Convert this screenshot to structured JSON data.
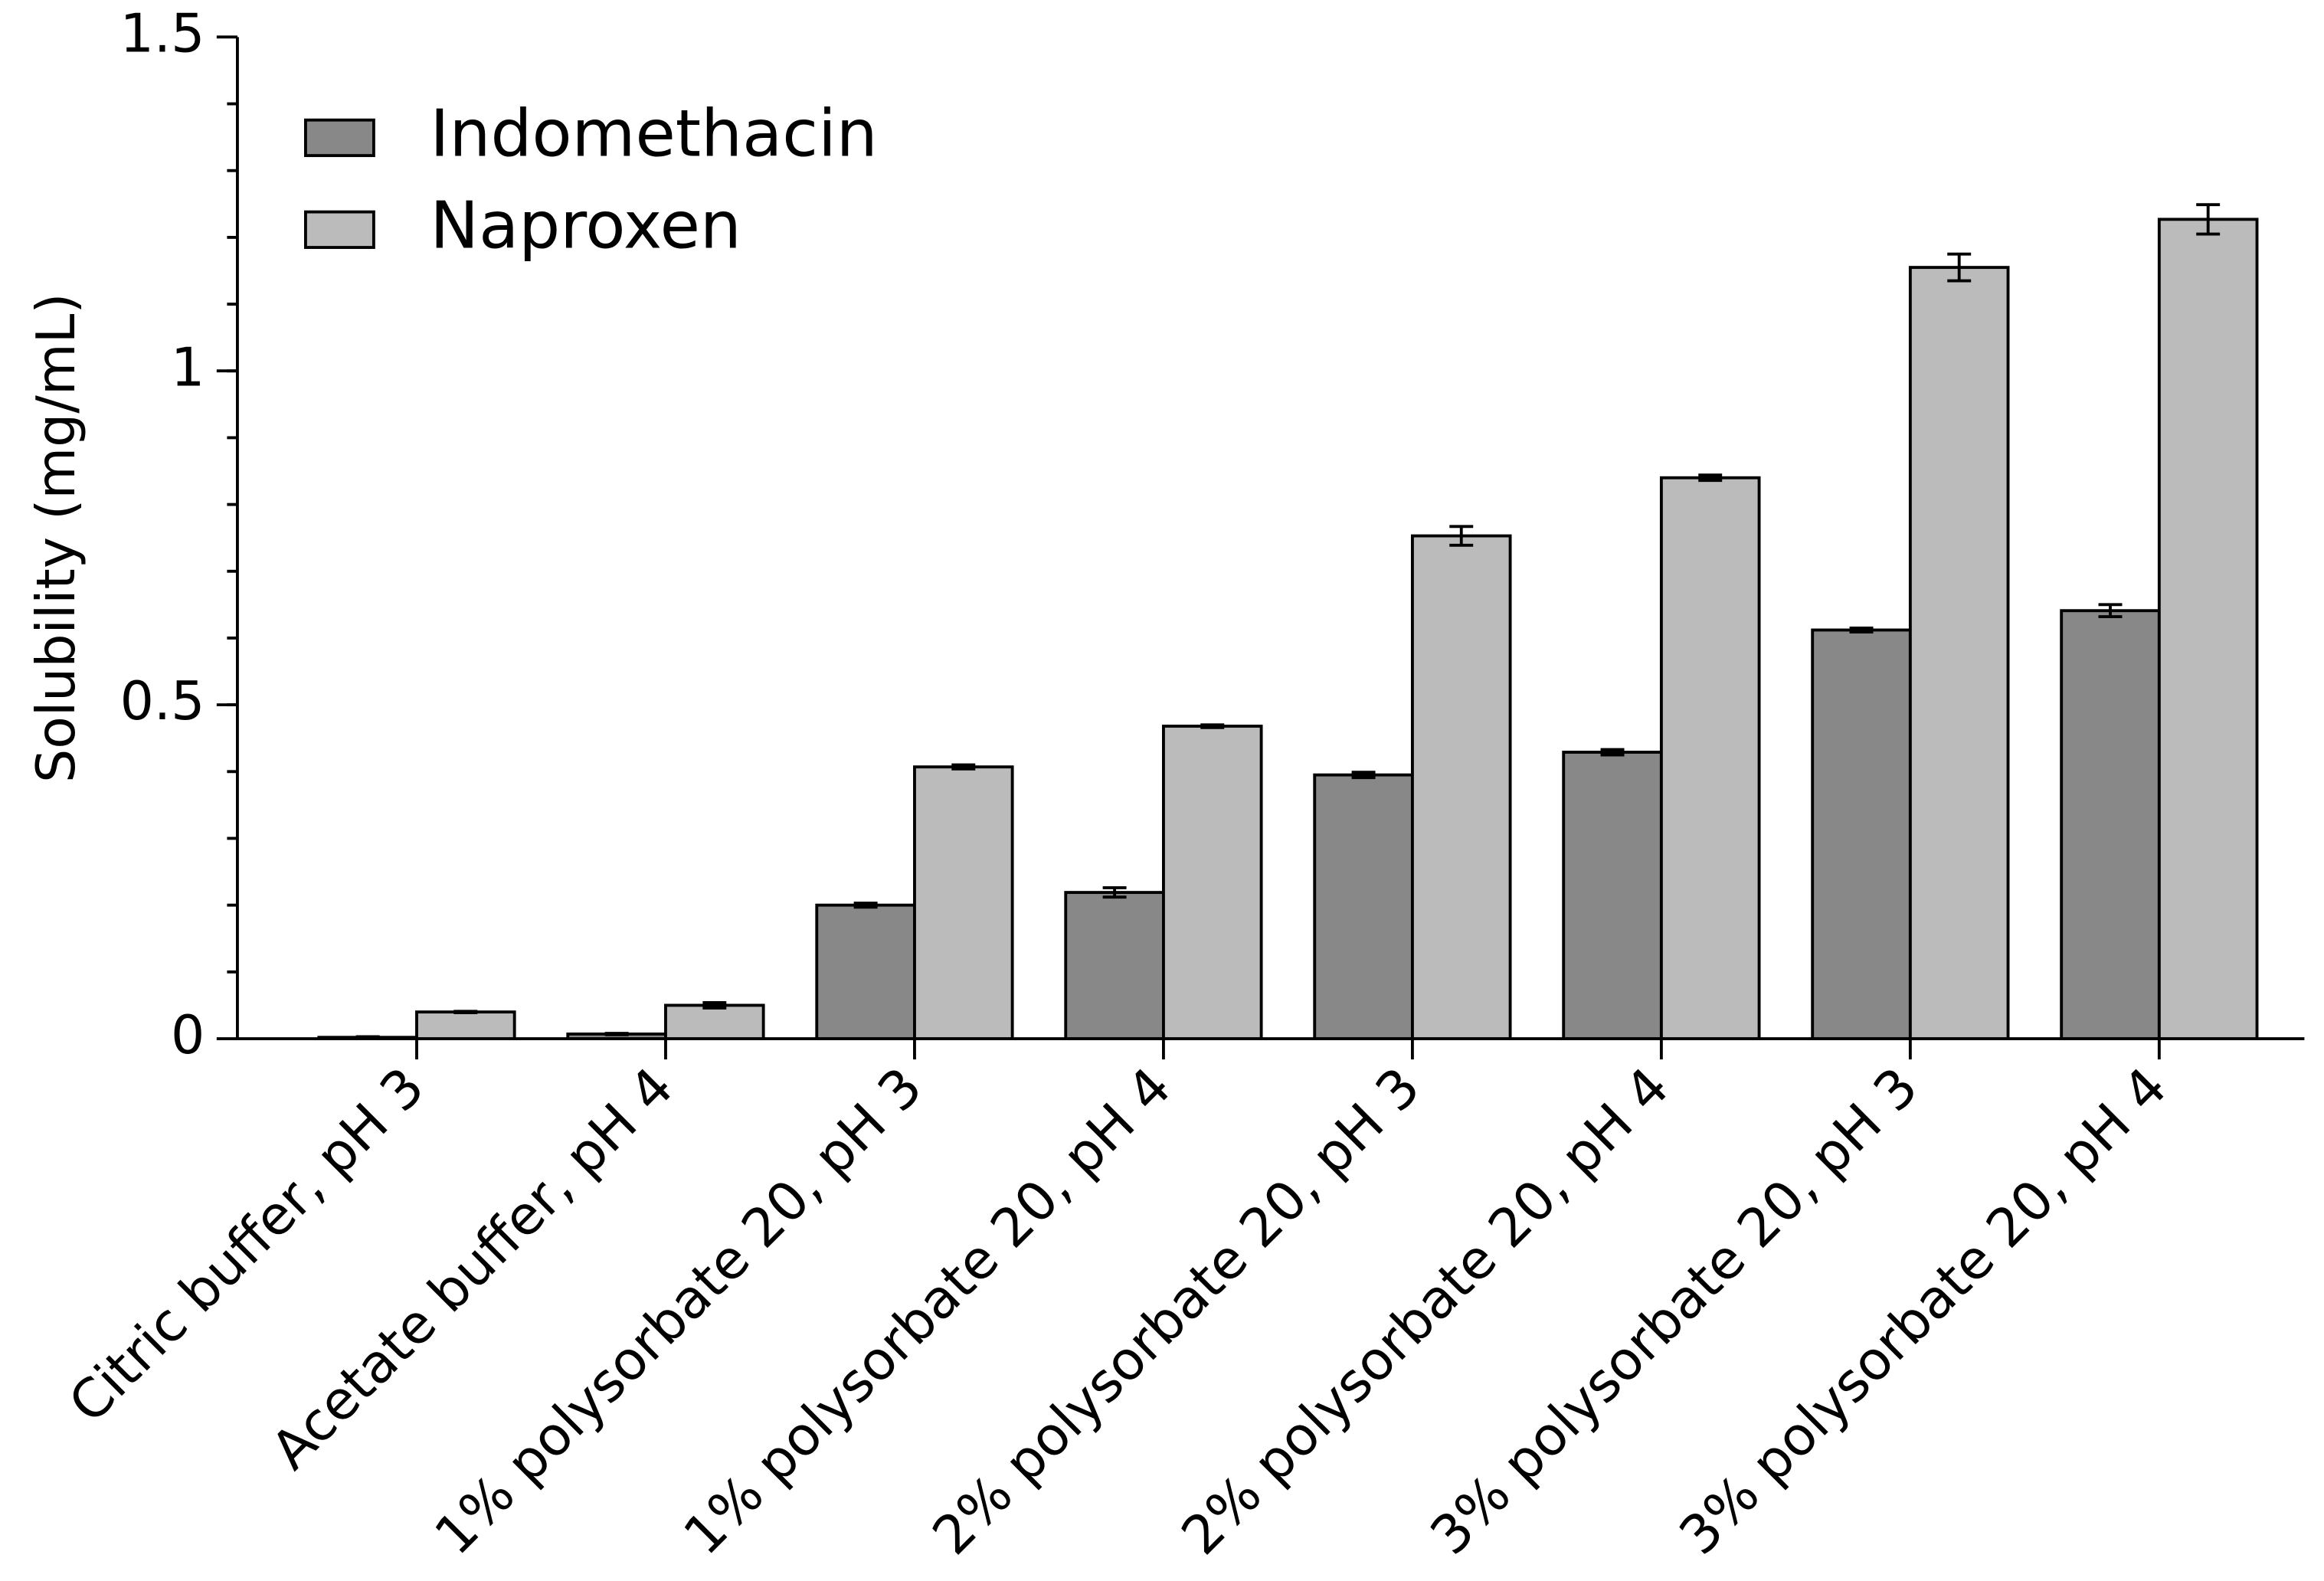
{
  "chart_data": {
    "type": "bar",
    "y_label": "Solubility (mg/mL)",
    "categories": [
      "Citric buffer, pH 3",
      "Acetate buffer, pH 4",
      "1% polysorbate 20, pH 3",
      "1% polysorbate 20, pH 4",
      "2% polysorbate 20, pH 3",
      "2% polysorbate 20, pH 4",
      "3% polysorbate 20, pH 3",
      "3% polysorbate 20, pH 4"
    ],
    "series": [
      {
        "name": "Indomethacin",
        "color": "#888888",
        "values": [
          0.002,
          0.007,
          0.2,
          0.219,
          0.395,
          0.429,
          0.612,
          0.641
        ],
        "errors": [
          0.001,
          0.001,
          0.003,
          0.007,
          0.004,
          0.004,
          0.003,
          0.009
        ]
      },
      {
        "name": "Naproxen",
        "color": "#bbbbbb",
        "values": [
          0.04,
          0.05,
          0.407,
          0.468,
          0.753,
          0.84,
          1.155,
          1.227
        ],
        "errors": [
          0.001,
          0.004,
          0.003,
          0.002,
          0.014,
          0.004,
          0.02,
          0.022
        ]
      }
    ],
    "ylim": [
      0,
      1.5
    ],
    "yticks": [
      0,
      0.5,
      1,
      1.5
    ],
    "legend": "upper-left"
  }
}
